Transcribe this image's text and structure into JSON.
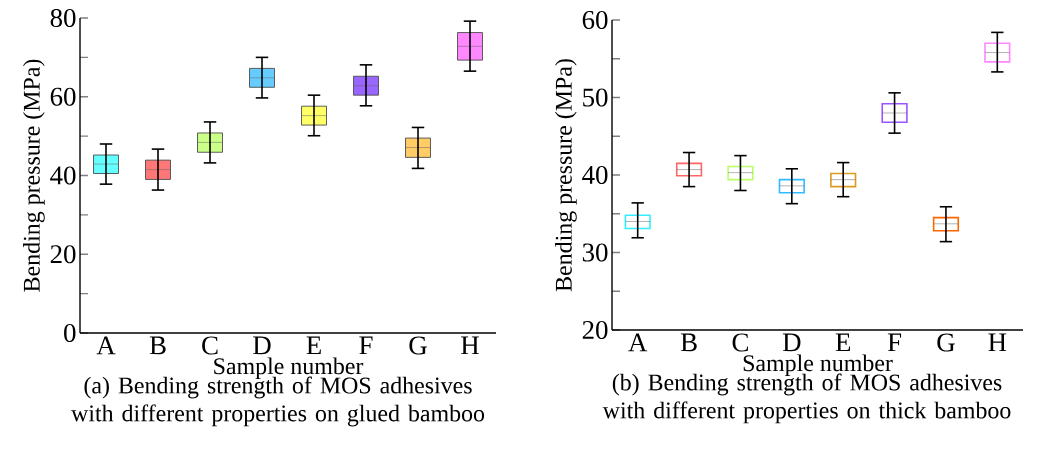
{
  "chart_data": [
    {
      "type": "box",
      "xlabel": "Sample number",
      "ylabel": "Bending pressure (MPa)",
      "title": "(a) Bending strength of MOS adhesives with different properties on glued bamboo",
      "categories": [
        "A",
        "B",
        "C",
        "D",
        "E",
        "F",
        "G",
        "H"
      ],
      "colors": [
        "#66ffff",
        "#ff7777",
        "#ccff88",
        "#66ccff",
        "#ffff66",
        "#9966ff",
        "#ffcc66",
        "#ff88ff"
      ],
      "boxes": [
        {
          "low": 37.8,
          "q1": 40.5,
          "median": 42.9,
          "q3": 45.2,
          "high": 48.0
        },
        {
          "low": 36.3,
          "q1": 39.0,
          "median": 41.5,
          "q3": 43.9,
          "high": 46.7
        },
        {
          "low": 43.2,
          "q1": 45.9,
          "median": 48.4,
          "q3": 50.8,
          "high": 53.6
        },
        {
          "low": 59.7,
          "q1": 62.4,
          "median": 64.8,
          "q3": 67.2,
          "high": 70.0
        },
        {
          "low": 50.1,
          "q1": 52.8,
          "median": 55.2,
          "q3": 57.6,
          "high": 60.4
        },
        {
          "low": 57.7,
          "q1": 60.4,
          "median": 62.8,
          "q3": 65.2,
          "high": 68.1
        },
        {
          "low": 41.8,
          "q1": 44.6,
          "median": 47.1,
          "q3": 49.5,
          "high": 52.2
        },
        {
          "low": 66.5,
          "q1": 69.3,
          "median": 72.8,
          "q3": 76.3,
          "high": 79.2
        }
      ],
      "ylim": [
        0,
        80
      ],
      "yticks": [
        0,
        {
          "value": 10,
          "label": null
        },
        20,
        {
          "value": 30,
          "label": null
        },
        40,
        {
          "value": 50,
          "label": null
        },
        60,
        {
          "value": 70,
          "label": null
        },
        80
      ],
      "grid": false
    },
    {
      "type": "box",
      "xlabel": "Sample number",
      "ylabel": "Bending pressure (MPa)",
      "title": "(b) Bending strength of MOS adhesives with different properties on thick bamboo",
      "categories": [
        "A",
        "B",
        "C",
        "D",
        "E",
        "F",
        "G",
        "H"
      ],
      "colors": [
        "#33eeff",
        "#ff6666",
        "#bbff66",
        "#33bbff",
        "#dd9922",
        "#9955ff",
        "#ff6600",
        "#ff88ff"
      ],
      "boxes": [
        {
          "low": 31.9,
          "q1": 33.1,
          "median": 34.0,
          "q3": 34.8,
          "high": 36.4
        },
        {
          "low": 38.5,
          "q1": 39.9,
          "median": 40.7,
          "q3": 41.5,
          "high": 42.9
        },
        {
          "low": 38.0,
          "q1": 39.4,
          "median": 40.3,
          "q3": 41.1,
          "high": 42.5
        },
        {
          "low": 36.3,
          "q1": 37.7,
          "median": 38.6,
          "q3": 39.4,
          "high": 40.8
        },
        {
          "low": 37.2,
          "q1": 38.5,
          "median": 39.4,
          "q3": 40.2,
          "high": 41.6
        },
        {
          "low": 45.4,
          "q1": 46.8,
          "median": 48.0,
          "q3": 49.2,
          "high": 50.6
        },
        {
          "low": 31.4,
          "q1": 32.8,
          "median": 33.7,
          "q3": 34.5,
          "high": 35.9
        },
        {
          "low": 53.3,
          "q1": 54.6,
          "median": 55.8,
          "q3": 57.0,
          "high": 58.4
        }
      ],
      "ylim": [
        20,
        60
      ],
      "yticks": [
        20,
        {
          "value": 25,
          "label": null
        },
        30,
        {
          "value": 35,
          "label": null
        },
        40,
        {
          "value": 45,
          "label": null
        },
        50,
        {
          "value": 55,
          "label": null
        },
        60
      ],
      "grid": false
    }
  ]
}
